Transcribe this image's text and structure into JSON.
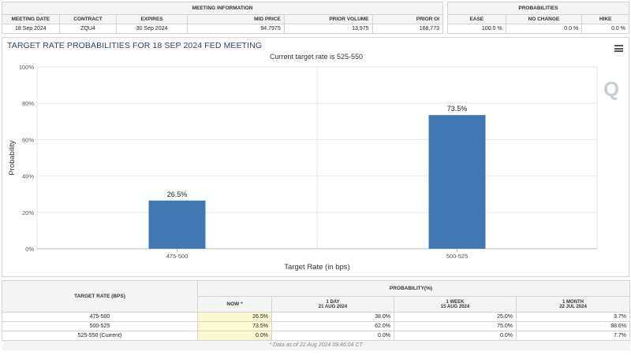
{
  "meeting_info": {
    "title": "MEETING INFORMATION",
    "headers": [
      "MEETING DATE",
      "CONTRACT",
      "EXPIRES",
      "MID PRICE",
      "PRIOR VOLUME",
      "PRIOR OI"
    ],
    "values": [
      "18 Sep 2024",
      "ZQU4",
      "30 Sep 2024",
      "94.7975",
      "13,975",
      "168,773"
    ]
  },
  "probabilities": {
    "title": "PROBABILITIES",
    "headers": [
      "EASE",
      "NO CHANGE",
      "HIKE"
    ],
    "values": [
      "100.0 %",
      "0.0 %",
      "0.0 %"
    ]
  },
  "colors": {
    "bar": "#4178b3",
    "title": "#2e3f7a",
    "highlight": "#fbf9cf"
  },
  "icons": {
    "menu": "hamburger-menu-icon",
    "watermark_logo": "q-logo"
  },
  "chart_data": {
    "type": "bar",
    "title": "TARGET RATE PROBABILITIES FOR 18 SEP 2024 FED MEETING",
    "subtitle": "Current target rate is 525-550",
    "xlabel": "Target Rate (in bps)",
    "ylabel": "Probability",
    "categories": [
      "475-500",
      "500-525"
    ],
    "values": [
      26.5,
      73.5
    ],
    "data_labels": [
      "26.5%",
      "73.5%"
    ],
    "ylim": [
      0,
      100
    ],
    "yticks": [
      0,
      20,
      40,
      60,
      80,
      100
    ],
    "ytick_labels": [
      "0%",
      "20%",
      "40%",
      "60%",
      "80%",
      "100%"
    ],
    "grid": true,
    "legend": "none"
  },
  "prob_table": {
    "col_target": "TARGET RATE (BPS)",
    "group_header": "PROBABILITY(%)",
    "columns": [
      {
        "label": "NOW *",
        "date": ""
      },
      {
        "label": "1 DAY",
        "date": "21 AUG 2024"
      },
      {
        "label": "1 WEEK",
        "date": "15 AUG 2024"
      },
      {
        "label": "1 MONTH",
        "date": "22 JUL 2024"
      }
    ],
    "rows": [
      {
        "rate": "475-500",
        "cells": [
          "26.5%",
          "38.0%",
          "25.0%",
          "3.7%"
        ]
      },
      {
        "rate": "500-525",
        "cells": [
          "73.5%",
          "62.0%",
          "75.0%",
          "88.6%"
        ]
      },
      {
        "rate": "525-550 (Current)",
        "cells": [
          "0.0%",
          "0.0%",
          "0.0%",
          "7.7%"
        ]
      }
    ],
    "footnote": "* Data as of 22 Aug 2024 09:46:04 CT"
  }
}
